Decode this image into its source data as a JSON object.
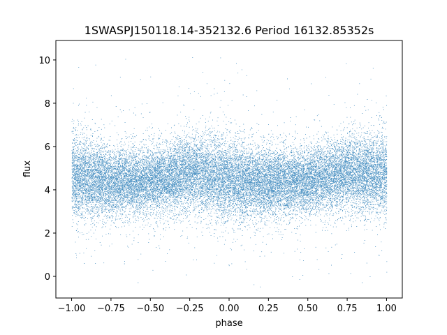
{
  "chart_data": {
    "type": "scatter",
    "title": "1SWASPJ150118.14-352132.6 Period 16132.85352s",
    "xlabel": "phase",
    "ylabel": "flux",
    "xlim": [
      -1.1,
      1.1
    ],
    "ylim": [
      -1.0,
      10.9
    ],
    "x_ticks": [
      -1.0,
      -0.75,
      -0.5,
      -0.25,
      0.0,
      0.25,
      0.5,
      0.75,
      1.0
    ],
    "x_tick_labels": [
      "−1.00",
      "−0.75",
      "−0.50",
      "−0.25",
      "0.00",
      "0.25",
      "0.50",
      "0.75",
      "1.00"
    ],
    "y_ticks": [
      0,
      2,
      4,
      6,
      8,
      10
    ],
    "y_tick_labels": [
      "0",
      "2",
      "4",
      "6",
      "8",
      "10"
    ],
    "grid": false,
    "legend": "none",
    "series": [
      {
        "color": "#1f77b4",
        "phase_range": [
          -1.0,
          1.0
        ],
        "flux_clip": [
          -0.5,
          10.35
        ],
        "profile": {
          "phase": [
            -1.0,
            -0.75,
            -0.5,
            -0.25,
            0.0,
            0.25,
            0.5,
            0.75,
            1.0
          ],
          "flux_center": [
            4.7,
            4.3,
            4.4,
            4.8,
            4.5,
            4.3,
            4.4,
            4.8,
            4.7
          ],
          "flux_spread": [
            0.95,
            0.8,
            0.75,
            0.85,
            0.95,
            0.8,
            0.75,
            0.85,
            0.95
          ]
        },
        "n_points": 26000
      }
    ]
  }
}
